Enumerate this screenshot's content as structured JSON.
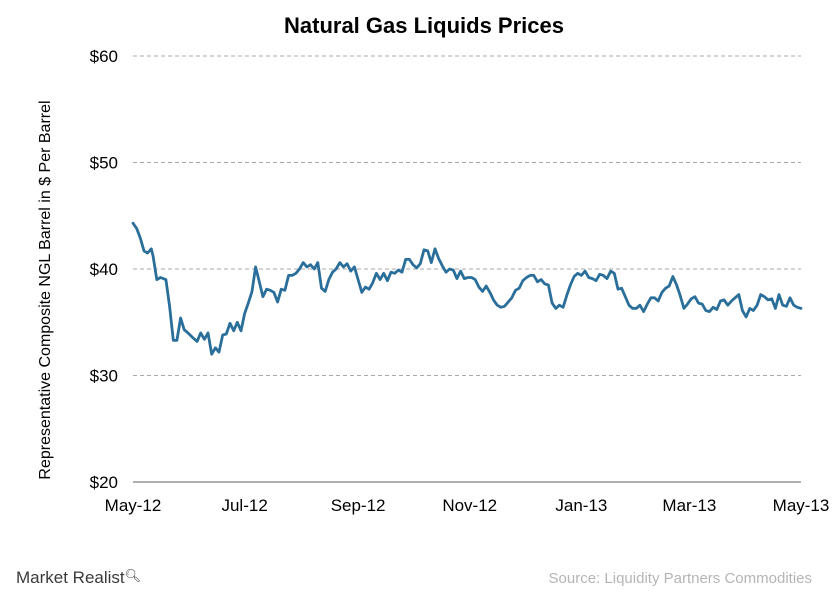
{
  "chart_data": {
    "type": "line",
    "title": "Natural Gas Liquids Prices",
    "ylabel": "Representative Composite NGL Barrel in $ Per Barrel",
    "xlabel": "",
    "ylim": [
      20,
      60
    ],
    "y_ticks": [
      {
        "value": 60,
        "label": "$60"
      },
      {
        "value": 50,
        "label": "$50"
      },
      {
        "value": 40,
        "label": "$40"
      },
      {
        "value": 30,
        "label": "$30"
      },
      {
        "value": 20,
        "label": "$20"
      }
    ],
    "xlim": [
      "2012-05-01",
      "2013-05-01"
    ],
    "x_ticks": [
      {
        "date": "2012-05-01",
        "label": "May-12"
      },
      {
        "date": "2012-07-01",
        "label": "Jul-12"
      },
      {
        "date": "2012-09-01",
        "label": "Sep-12"
      },
      {
        "date": "2012-11-01",
        "label": "Nov-12"
      },
      {
        "date": "2013-01-01",
        "label": "Jan-13"
      },
      {
        "date": "2013-03-01",
        "label": "Mar-13"
      },
      {
        "date": "2013-05-01",
        "label": "May-13"
      }
    ],
    "grid": true,
    "series": [
      {
        "color": "#2a6e9a",
        "points": [
          [
            "2012-05-01",
            44.3
          ],
          [
            "2012-05-03",
            43.8
          ],
          [
            "2012-05-05",
            42.9
          ],
          [
            "2012-05-07",
            41.7
          ],
          [
            "2012-05-09",
            41.5
          ],
          [
            "2012-05-11",
            41.9
          ],
          [
            "2012-05-12",
            41.2
          ],
          [
            "2012-05-14",
            39.0
          ],
          [
            "2012-05-16",
            39.2
          ],
          [
            "2012-05-19",
            39.0
          ],
          [
            "2012-05-21",
            36.5
          ],
          [
            "2012-05-23",
            33.3
          ],
          [
            "2012-05-25",
            33.3
          ],
          [
            "2012-05-27",
            35.4
          ],
          [
            "2012-05-29",
            34.3
          ],
          [
            "2012-05-31",
            34.0
          ],
          [
            "2012-06-03",
            33.5
          ],
          [
            "2012-06-05",
            33.2
          ],
          [
            "2012-06-07",
            34.0
          ],
          [
            "2012-06-09",
            33.4
          ],
          [
            "2012-06-11",
            34.0
          ],
          [
            "2012-06-13",
            32.0
          ],
          [
            "2012-06-15",
            32.6
          ],
          [
            "2012-06-17",
            32.2
          ],
          [
            "2012-06-19",
            33.8
          ],
          [
            "2012-06-21",
            33.9
          ],
          [
            "2012-06-23",
            34.9
          ],
          [
            "2012-06-25",
            34.2
          ],
          [
            "2012-06-27",
            35.0
          ],
          [
            "2012-06-29",
            34.2
          ],
          [
            "2012-07-01",
            35.8
          ],
          [
            "2012-07-03",
            36.8
          ],
          [
            "2012-07-05",
            37.9
          ],
          [
            "2012-07-07",
            40.2
          ],
          [
            "2012-07-09",
            38.8
          ],
          [
            "2012-07-11",
            37.4
          ],
          [
            "2012-07-13",
            38.1
          ],
          [
            "2012-07-15",
            38.0
          ],
          [
            "2012-07-17",
            37.8
          ],
          [
            "2012-07-19",
            36.9
          ],
          [
            "2012-07-21",
            38.1
          ],
          [
            "2012-07-23",
            38.0
          ],
          [
            "2012-07-25",
            39.4
          ],
          [
            "2012-07-27",
            39.4
          ],
          [
            "2012-07-29",
            39.6
          ],
          [
            "2012-07-31",
            40.0
          ],
          [
            "2012-08-02",
            40.6
          ],
          [
            "2012-08-04",
            40.2
          ],
          [
            "2012-08-06",
            40.4
          ],
          [
            "2012-08-08",
            40.0
          ],
          [
            "2012-08-10",
            40.6
          ],
          [
            "2012-08-12",
            38.2
          ],
          [
            "2012-08-14",
            37.9
          ],
          [
            "2012-08-16",
            39.0
          ],
          [
            "2012-08-18",
            39.7
          ],
          [
            "2012-08-20",
            40.0
          ],
          [
            "2012-08-22",
            40.6
          ],
          [
            "2012-08-24",
            40.2
          ],
          [
            "2012-08-26",
            40.5
          ],
          [
            "2012-08-28",
            39.8
          ],
          [
            "2012-08-30",
            40.2
          ],
          [
            "2012-09-01",
            39.0
          ],
          [
            "2012-09-03",
            37.8
          ],
          [
            "2012-09-05",
            38.3
          ],
          [
            "2012-09-07",
            38.1
          ],
          [
            "2012-09-09",
            38.7
          ],
          [
            "2012-09-11",
            39.6
          ],
          [
            "2012-09-13",
            39.0
          ],
          [
            "2012-09-15",
            39.6
          ],
          [
            "2012-09-17",
            38.9
          ],
          [
            "2012-09-19",
            39.7
          ],
          [
            "2012-09-21",
            39.6
          ],
          [
            "2012-09-23",
            39.9
          ],
          [
            "2012-09-25",
            39.7
          ],
          [
            "2012-09-27",
            40.9
          ],
          [
            "2012-09-29",
            40.9
          ],
          [
            "2012-10-01",
            40.4
          ],
          [
            "2012-10-03",
            40.1
          ],
          [
            "2012-10-05",
            40.5
          ],
          [
            "2012-10-07",
            41.8
          ],
          [
            "2012-10-09",
            41.7
          ],
          [
            "2012-10-11",
            40.6
          ],
          [
            "2012-10-13",
            41.9
          ],
          [
            "2012-10-15",
            41.0
          ],
          [
            "2012-10-17",
            40.3
          ],
          [
            "2012-10-19",
            39.7
          ],
          [
            "2012-10-21",
            40.0
          ],
          [
            "2012-10-23",
            39.9
          ],
          [
            "2012-10-25",
            39.1
          ],
          [
            "2012-10-27",
            39.8
          ],
          [
            "2012-10-29",
            39.1
          ],
          [
            "2012-10-31",
            39.2
          ],
          [
            "2012-11-02",
            39.2
          ],
          [
            "2012-11-04",
            39.0
          ],
          [
            "2012-11-06",
            38.3
          ],
          [
            "2012-11-08",
            37.9
          ],
          [
            "2012-11-10",
            38.4
          ],
          [
            "2012-11-12",
            37.8
          ],
          [
            "2012-11-14",
            37.1
          ],
          [
            "2012-11-16",
            36.6
          ],
          [
            "2012-11-18",
            36.4
          ],
          [
            "2012-11-20",
            36.5
          ],
          [
            "2012-11-22",
            36.9
          ],
          [
            "2012-11-24",
            37.3
          ],
          [
            "2012-11-26",
            38.0
          ],
          [
            "2012-11-28",
            38.2
          ],
          [
            "2012-11-30",
            38.9
          ],
          [
            "2012-12-02",
            39.2
          ],
          [
            "2012-12-04",
            39.4
          ],
          [
            "2012-12-06",
            39.4
          ],
          [
            "2012-12-08",
            38.8
          ],
          [
            "2012-12-10",
            39.0
          ],
          [
            "2012-12-12",
            38.6
          ],
          [
            "2012-12-14",
            38.5
          ],
          [
            "2012-12-16",
            36.8
          ],
          [
            "2012-12-18",
            36.3
          ],
          [
            "2012-12-20",
            36.6
          ],
          [
            "2012-12-22",
            36.4
          ],
          [
            "2012-12-24",
            37.5
          ],
          [
            "2012-12-26",
            38.5
          ],
          [
            "2012-12-28",
            39.3
          ],
          [
            "2012-12-30",
            39.6
          ],
          [
            "2013-01-01",
            39.4
          ],
          [
            "2013-01-03",
            39.8
          ],
          [
            "2013-01-05",
            39.2
          ],
          [
            "2013-01-07",
            39.1
          ],
          [
            "2013-01-09",
            38.9
          ],
          [
            "2013-01-11",
            39.5
          ],
          [
            "2013-01-13",
            39.4
          ],
          [
            "2013-01-15",
            39.1
          ],
          [
            "2013-01-17",
            39.8
          ],
          [
            "2013-01-19",
            39.6
          ],
          [
            "2013-01-21",
            38.1
          ],
          [
            "2013-01-23",
            38.2
          ],
          [
            "2013-01-25",
            37.4
          ],
          [
            "2013-01-27",
            36.6
          ],
          [
            "2013-01-29",
            36.3
          ],
          [
            "2013-01-31",
            36.3
          ],
          [
            "2013-02-02",
            36.6
          ],
          [
            "2013-02-04",
            36.0
          ],
          [
            "2013-02-06",
            36.7
          ],
          [
            "2013-02-08",
            37.3
          ],
          [
            "2013-02-10",
            37.3
          ],
          [
            "2013-02-12",
            37.0
          ],
          [
            "2013-02-14",
            37.8
          ],
          [
            "2013-02-16",
            38.2
          ],
          [
            "2013-02-18",
            38.4
          ],
          [
            "2013-02-20",
            39.3
          ],
          [
            "2013-02-22",
            38.5
          ],
          [
            "2013-02-24",
            37.5
          ],
          [
            "2013-02-26",
            36.3
          ],
          [
            "2013-02-28",
            36.7
          ],
          [
            "2013-03-02",
            37.2
          ],
          [
            "2013-03-04",
            37.4
          ],
          [
            "2013-03-06",
            36.8
          ],
          [
            "2013-03-08",
            36.7
          ],
          [
            "2013-03-10",
            36.1
          ],
          [
            "2013-03-12",
            36.0
          ],
          [
            "2013-03-14",
            36.4
          ],
          [
            "2013-03-16",
            36.2
          ],
          [
            "2013-03-18",
            37.0
          ],
          [
            "2013-03-20",
            37.1
          ],
          [
            "2013-03-22",
            36.6
          ],
          [
            "2013-03-24",
            37.0
          ],
          [
            "2013-03-26",
            37.3
          ],
          [
            "2013-03-28",
            37.6
          ],
          [
            "2013-03-30",
            36.1
          ],
          [
            "2013-04-01",
            35.5
          ],
          [
            "2013-04-03",
            36.3
          ],
          [
            "2013-04-05",
            36.1
          ],
          [
            "2013-04-07",
            36.6
          ],
          [
            "2013-04-09",
            37.6
          ],
          [
            "2013-04-11",
            37.4
          ],
          [
            "2013-04-13",
            37.1
          ],
          [
            "2013-04-15",
            37.2
          ],
          [
            "2013-04-17",
            36.3
          ],
          [
            "2013-04-19",
            37.6
          ],
          [
            "2013-04-21",
            36.6
          ],
          [
            "2013-04-23",
            36.5
          ],
          [
            "2013-04-25",
            37.3
          ],
          [
            "2013-04-27",
            36.6
          ],
          [
            "2013-04-29",
            36.4
          ],
          [
            "2013-05-01",
            36.3
          ]
        ]
      }
    ]
  },
  "footer": {
    "brand": "Market Realist",
    "brand_icon": "magnifier-icon",
    "source": "Source: Liquidity Partners Commodities"
  }
}
